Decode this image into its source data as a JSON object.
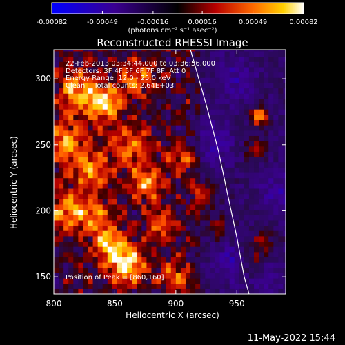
{
  "colorbar": {
    "ticks": [
      "-0.00082",
      "-0.00049",
      "-0.00016",
      "0.00016",
      "0.00049",
      "0.00082"
    ],
    "tick_values": [
      -0.00082,
      -0.00049,
      -0.00016,
      0.00016,
      0.00049,
      0.00082
    ],
    "units": "(photons cm⁻² s⁻¹ asec⁻²)",
    "range": [
      -0.00082,
      0.00082
    ]
  },
  "title": "Reconstructed RHESSI Image",
  "annotations": {
    "time": "22-Feb-2013 03:34:44.000 to 03:36:56.000",
    "detectors": "Detectors: 3F 4F 5F 6F 7F 8F, Att 0",
    "energy": "Energy Range: 12.0 - 25.0 keV",
    "clean": "Clean    Total counts: 2.64E+03",
    "peak": "Position of Peak = [860,160]"
  },
  "xlabel": "Heliocentric X (arcsec)",
  "ylabel": "Heliocentric Y (arcsec)",
  "timestamp": "11-May-2022 15:44",
  "chart_data": {
    "type": "heatmap",
    "title": "Reconstructed RHESSI Image",
    "xlabel": "Heliocentric X (arcsec)",
    "ylabel": "Heliocentric Y (arcsec)",
    "xlim": [
      800,
      990
    ],
    "ylim": [
      137,
      322
    ],
    "x_ticks": [
      800,
      850,
      900,
      950
    ],
    "y_ticks": [
      150,
      200,
      250,
      300
    ],
    "x_tick_labels": [
      "800",
      "850",
      "900",
      "950"
    ],
    "y_tick_labels": [
      "150",
      "200",
      "250",
      "300"
    ],
    "peak": [
      860,
      160
    ],
    "colormap": "blue-black-red-yellow-white",
    "sources": [
      {
        "x": 860,
        "y": 160,
        "amp": 1.0,
        "sigma": 10
      },
      {
        "x": 846,
        "y": 175,
        "amp": 0.75,
        "sigma": 9
      },
      {
        "x": 820,
        "y": 290,
        "amp": 0.7,
        "sigma": 12
      },
      {
        "x": 842,
        "y": 281,
        "amp": 0.8,
        "sigma": 9
      },
      {
        "x": 868,
        "y": 300,
        "amp": 0.6,
        "sigma": 10
      },
      {
        "x": 812,
        "y": 250,
        "amp": 0.7,
        "sigma": 12
      },
      {
        "x": 832,
        "y": 230,
        "amp": 0.55,
        "sigma": 10
      },
      {
        "x": 862,
        "y": 250,
        "amp": 0.6,
        "sigma": 12
      },
      {
        "x": 875,
        "y": 220,
        "amp": 0.7,
        "sigma": 9
      },
      {
        "x": 810,
        "y": 200,
        "amp": 0.65,
        "sigma": 12
      },
      {
        "x": 835,
        "y": 195,
        "amp": 0.55,
        "sigma": 10
      },
      {
        "x": 888,
        "y": 190,
        "amp": 0.5,
        "sigma": 9
      },
      {
        "x": 905,
        "y": 240,
        "amp": 0.55,
        "sigma": 8
      },
      {
        "x": 900,
        "y": 150,
        "amp": 0.5,
        "sigma": 9
      },
      {
        "x": 922,
        "y": 212,
        "amp": 0.4,
        "sigma": 7
      },
      {
        "x": 935,
        "y": 188,
        "amp": 0.3,
        "sigma": 7
      },
      {
        "x": 968,
        "y": 272,
        "amp": 0.85,
        "sigma": 5
      },
      {
        "x": 965,
        "y": 248,
        "amp": 0.35,
        "sigma": 6
      },
      {
        "x": 970,
        "y": 175,
        "amp": 0.4,
        "sigma": 7
      },
      {
        "x": 962,
        "y": 160,
        "amp": 0.3,
        "sigma": 6
      },
      {
        "x": 945,
        "y": 160,
        "amp": -0.35,
        "sigma": 10
      },
      {
        "x": 930,
        "y": 252,
        "amp": -0.3,
        "sigma": 12
      },
      {
        "x": 950,
        "y": 300,
        "amp": -0.3,
        "sigma": 12
      },
      {
        "x": 985,
        "y": 215,
        "amp": -0.3,
        "sigma": 12
      },
      {
        "x": 975,
        "y": 145,
        "amp": -0.2,
        "sigma": 10
      }
    ],
    "limb": [
      [
        912,
        322
      ],
      [
        925,
        280
      ],
      [
        935,
        245
      ],
      [
        943,
        210
      ],
      [
        950,
        180
      ],
      [
        956,
        150
      ],
      [
        960,
        137
      ]
    ]
  }
}
